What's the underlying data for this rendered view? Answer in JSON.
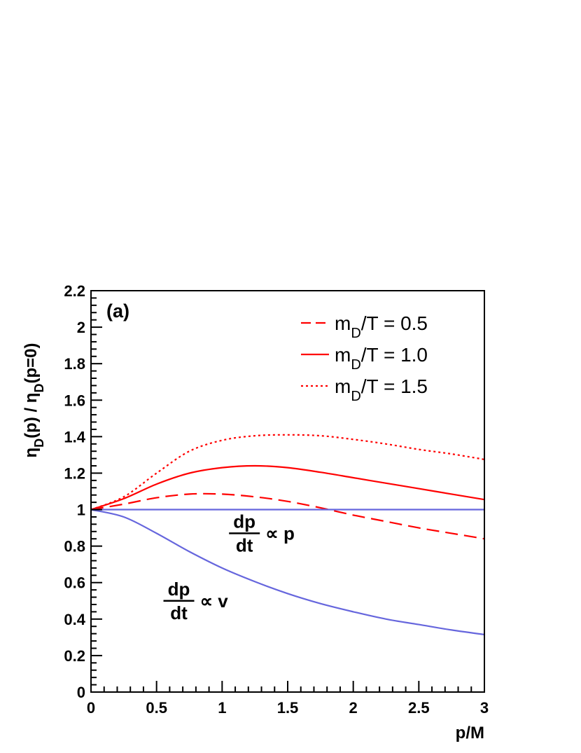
{
  "chart_data": {
    "type": "line",
    "panel_label": "(a)",
    "xlabel": "p/M",
    "ylabel": {
      "eta": "η",
      "sub": "D",
      "mid": "(p) / ",
      "eta2": "η",
      "sub2": "D",
      "end": "(p=0)"
    },
    "xlim": [
      0,
      3
    ],
    "ylim": [
      0,
      2.2
    ],
    "x_ticks": [
      0,
      0.5,
      1,
      1.5,
      2,
      2.5,
      3
    ],
    "x_tick_labels": [
      "0",
      "0.5",
      "1",
      "1.5",
      "2",
      "2.5",
      "3"
    ],
    "y_ticks": [
      0,
      0.2,
      0.4,
      0.6,
      0.8,
      1,
      1.2,
      1.4,
      1.6,
      1.8,
      2,
      2.2
    ],
    "y_tick_labels": [
      "0",
      "0.2",
      "0.4",
      "0.6",
      "0.8",
      "1",
      "1.2",
      "1.4",
      "1.6",
      "1.8",
      "2",
      "2.2"
    ],
    "grid": false,
    "legend_position": "top-right",
    "series": [
      {
        "name": {
          "pre": "m",
          "sub": "D",
          "post": "/T = 0.5"
        },
        "color": "#ff0000",
        "style": "dashed",
        "x": [
          0,
          0.25,
          0.5,
          0.75,
          1.0,
          1.25,
          1.5,
          1.75,
          2.0,
          2.25,
          2.5,
          2.75,
          3.0
        ],
        "y": [
          1.0,
          1.03,
          1.065,
          1.085,
          1.085,
          1.07,
          1.045,
          1.01,
          0.97,
          0.935,
          0.9,
          0.87,
          0.84
        ]
      },
      {
        "name": {
          "pre": "m",
          "sub": "D",
          "post": "/T = 1.0"
        },
        "color": "#ff0000",
        "style": "solid",
        "x": [
          0,
          0.25,
          0.5,
          0.75,
          1.0,
          1.25,
          1.5,
          1.75,
          2.0,
          2.25,
          2.5,
          2.75,
          3.0
        ],
        "y": [
          1.0,
          1.06,
          1.14,
          1.2,
          1.23,
          1.24,
          1.23,
          1.205,
          1.175,
          1.145,
          1.115,
          1.085,
          1.055
        ]
      },
      {
        "name": {
          "pre": "m",
          "sub": "D",
          "post": "/T = 1.5"
        },
        "color": "#ff0000",
        "style": "dotted",
        "x": [
          0,
          0.25,
          0.5,
          0.75,
          1.0,
          1.25,
          1.5,
          1.75,
          2.0,
          2.25,
          2.5,
          2.75,
          3.0
        ],
        "y": [
          1.0,
          1.07,
          1.2,
          1.32,
          1.38,
          1.405,
          1.41,
          1.405,
          1.385,
          1.36,
          1.33,
          1.305,
          1.275
        ]
      },
      {
        "name": "",
        "color": "#6666dd",
        "style": "solid",
        "x": [
          0,
          3
        ],
        "y": [
          1.0,
          1.0
        ]
      },
      {
        "name": "",
        "color": "#6666dd",
        "style": "solid",
        "x": [
          0,
          0.25,
          0.5,
          0.75,
          1.0,
          1.25,
          1.5,
          1.75,
          2.0,
          2.25,
          2.5,
          2.75,
          3.0
        ],
        "y": [
          1.0,
          0.96,
          0.87,
          0.77,
          0.68,
          0.605,
          0.54,
          0.485,
          0.44,
          0.4,
          0.37,
          0.34,
          0.315
        ]
      }
    ],
    "annotations": [
      {
        "num": "dp",
        "den": "dt",
        "rel": "∝ p",
        "x": 1.17,
        "y": 0.87
      },
      {
        "num": "dp",
        "den": "dt",
        "rel": "∝ v",
        "x": 0.67,
        "y": 0.5
      }
    ]
  }
}
